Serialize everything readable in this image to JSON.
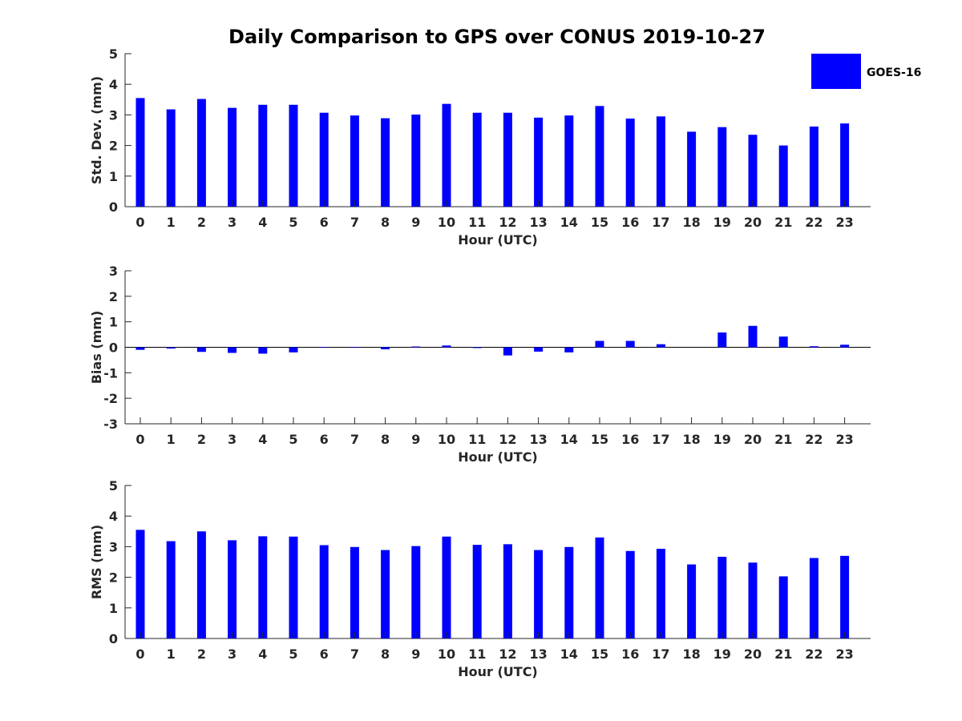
{
  "figure": {
    "title": "Daily Comparison to GPS over CONUS 2019-10-27",
    "legend": {
      "label": "GOES-16",
      "color": "#0000ff",
      "placement": "top-right"
    }
  },
  "chart_data": [
    {
      "type": "bar",
      "title": "Daily Comparison to GPS over CONUS 2019-10-27",
      "xlabel": "Hour (UTC)",
      "ylabel": "Std. Dev. (mm)",
      "categories": [
        "0",
        "1",
        "2",
        "3",
        "4",
        "5",
        "6",
        "7",
        "8",
        "9",
        "10",
        "11",
        "12",
        "13",
        "14",
        "15",
        "16",
        "17",
        "18",
        "19",
        "20",
        "21",
        "22",
        "23"
      ],
      "series": [
        {
          "name": "GOES-16",
          "values": [
            3.55,
            3.18,
            3.52,
            3.23,
            3.33,
            3.33,
            3.07,
            2.98,
            2.89,
            3.01,
            3.36,
            3.07,
            3.07,
            2.91,
            2.98,
            3.29,
            2.88,
            2.95,
            2.45,
            2.6,
            2.35,
            2.0,
            2.62,
            2.72
          ]
        }
      ],
      "ylim": [
        0,
        5
      ],
      "yticks": [
        "0",
        "1",
        "2",
        "3",
        "4",
        "5"
      ],
      "color": "#0000ff"
    },
    {
      "type": "bar",
      "xlabel": "Hour (UTC)",
      "ylabel": "Bias (mm)",
      "categories": [
        "0",
        "1",
        "2",
        "3",
        "4",
        "5",
        "6",
        "7",
        "8",
        "9",
        "10",
        "11",
        "12",
        "13",
        "14",
        "15",
        "16",
        "17",
        "18",
        "19",
        "20",
        "21",
        "22",
        "23"
      ],
      "series": [
        {
          "name": "GOES-16",
          "values": [
            -0.1,
            -0.05,
            -0.18,
            -0.22,
            -0.25,
            -0.2,
            -0.02,
            -0.02,
            -0.08,
            0.03,
            0.07,
            -0.03,
            -0.32,
            -0.17,
            -0.2,
            0.25,
            0.25,
            0.12,
            0.0,
            0.58,
            0.84,
            0.42,
            0.04,
            0.1
          ]
        }
      ],
      "ylim": [
        -3,
        3
      ],
      "yticks": [
        "-3",
        "-2",
        "-1",
        "0",
        "1",
        "2",
        "3"
      ],
      "zero_line": true,
      "color": "#0000ff"
    },
    {
      "type": "bar",
      "xlabel": "Hour (UTC)",
      "ylabel": "RMS (mm)",
      "categories": [
        "0",
        "1",
        "2",
        "3",
        "4",
        "5",
        "6",
        "7",
        "8",
        "9",
        "10",
        "11",
        "12",
        "13",
        "14",
        "15",
        "16",
        "17",
        "18",
        "19",
        "20",
        "21",
        "22",
        "23"
      ],
      "series": [
        {
          "name": "GOES-16",
          "values": [
            3.55,
            3.18,
            3.5,
            3.21,
            3.34,
            3.33,
            3.05,
            2.99,
            2.89,
            3.02,
            3.33,
            3.06,
            3.08,
            2.89,
            2.99,
            3.3,
            2.86,
            2.93,
            2.42,
            2.67,
            2.48,
            2.03,
            2.63,
            2.7
          ]
        }
      ],
      "ylim": [
        0,
        5
      ],
      "yticks": [
        "0",
        "1",
        "2",
        "3",
        "4",
        "5"
      ],
      "color": "#0000ff"
    }
  ]
}
